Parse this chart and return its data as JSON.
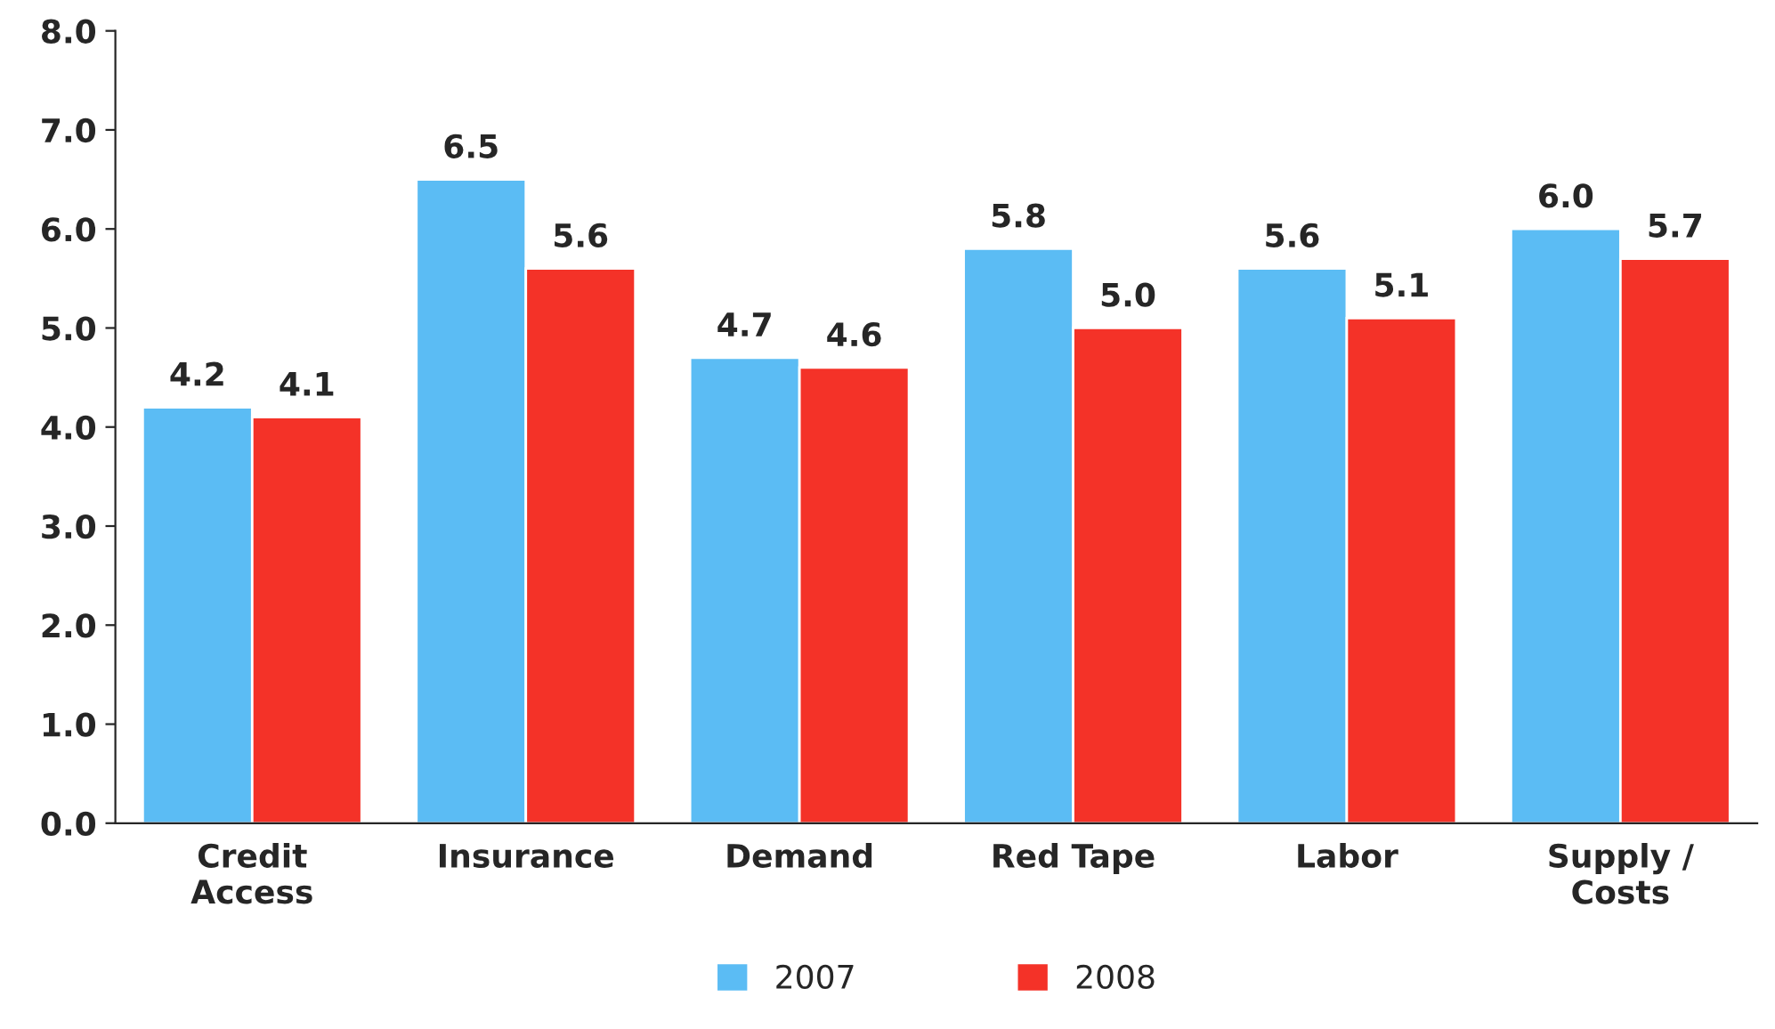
{
  "chart_data": {
    "type": "bar",
    "categories": [
      "Credit\nAccess",
      "Insurance",
      "Demand",
      "Red Tape",
      "Labor",
      "Supply /\nCosts"
    ],
    "series": [
      {
        "name": "2007",
        "color": "#5bbcf4",
        "values": [
          4.2,
          6.5,
          4.7,
          5.8,
          5.6,
          6.0
        ],
        "value_labels": [
          "4.2",
          "6.5",
          "4.7",
          "5.8",
          "5.6",
          "6.0"
        ]
      },
      {
        "name": "2008",
        "color": "#f43228",
        "values": [
          4.1,
          5.6,
          4.6,
          5.0,
          5.1,
          5.7
        ],
        "value_labels": [
          "4.1",
          "5.6",
          "4.6",
          "5.0",
          "5.1",
          "5.7"
        ]
      }
    ],
    "ylim": [
      0,
      8
    ],
    "yticks": [
      {
        "value": 0,
        "label": "0.0"
      },
      {
        "value": 1,
        "label": "1.0"
      },
      {
        "value": 2,
        "label": "2.0"
      },
      {
        "value": 3,
        "label": "3.0"
      },
      {
        "value": 4,
        "label": "4.0"
      },
      {
        "value": 5,
        "label": "5.0"
      },
      {
        "value": 6,
        "label": "6.0"
      },
      {
        "value": 7,
        "label": "7.0"
      },
      {
        "value": 8,
        "label": "8.0"
      }
    ],
    "legend": "bottom",
    "grid": false
  }
}
